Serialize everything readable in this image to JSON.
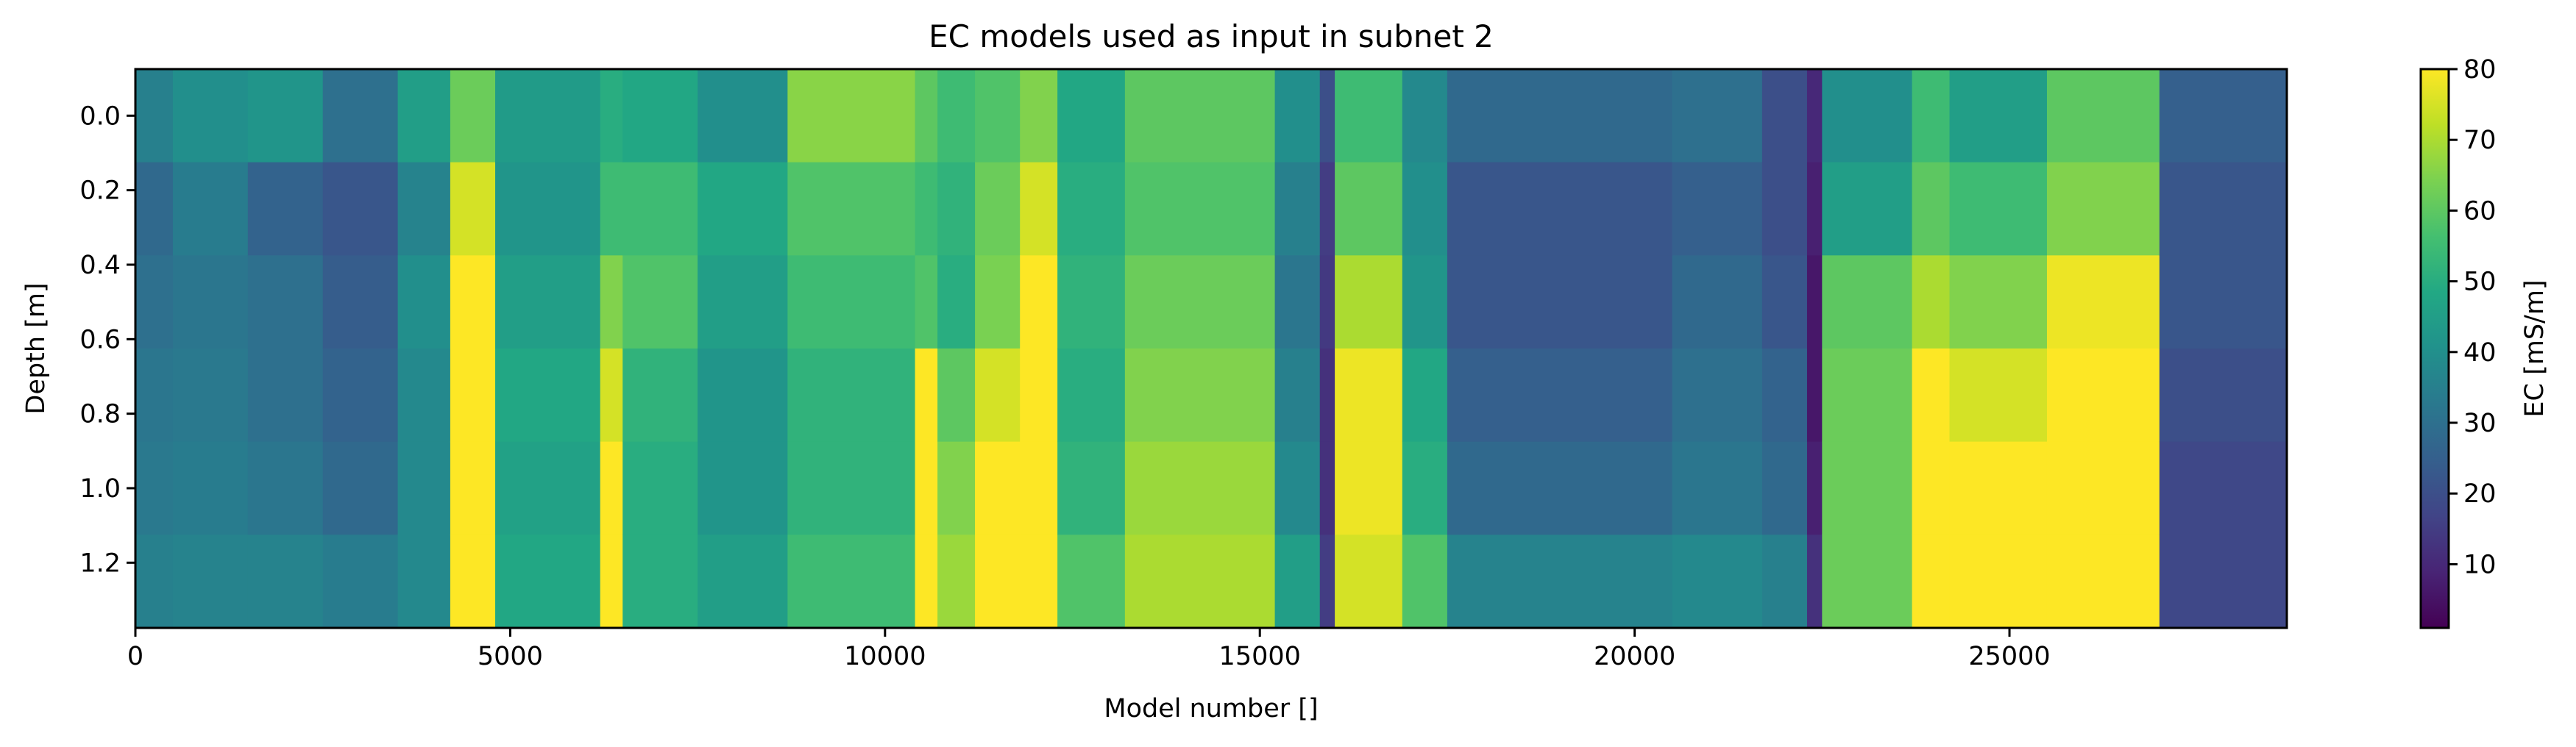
{
  "chart_data": {
    "type": "heatmap",
    "title": "EC models used as input in subnet 2",
    "xlabel": "Model number []",
    "ylabel": "Depth [m]",
    "colorbar_label": "EC [mS/m]",
    "colormap": "viridis",
    "xlim": [
      0,
      28700
    ],
    "ylim": [
      1.375,
      -0.125
    ],
    "clim": [
      1,
      80
    ],
    "x_ticks": [
      0,
      5000,
      10000,
      15000,
      20000,
      25000
    ],
    "x_tick_labels": [
      "0",
      "5000",
      "10000",
      "15000",
      "20000",
      "25000"
    ],
    "y_ticks": [
      0.0,
      0.2,
      0.4,
      0.6,
      0.8,
      1.0,
      1.2
    ],
    "y_tick_labels": [
      "0.0",
      "0.2",
      "0.4",
      "0.6",
      "0.8",
      "1.0",
      "1.2"
    ],
    "colorbar_ticks": [
      10,
      20,
      30,
      40,
      50,
      60,
      70,
      80
    ],
    "colorbar_tick_labels": [
      "10",
      "20",
      "30",
      "40",
      "50",
      "60",
      "70",
      "80"
    ],
    "layers": [
      {
        "depth_top": -0.125,
        "depth_bottom": 0.125
      },
      {
        "depth_top": 0.125,
        "depth_bottom": 0.375
      },
      {
        "depth_top": 0.375,
        "depth_bottom": 0.625
      },
      {
        "depth_top": 0.625,
        "depth_bottom": 0.875
      },
      {
        "depth_top": 0.875,
        "depth_bottom": 1.125
      },
      {
        "depth_top": 1.125,
        "depth_bottom": 1.375
      }
    ],
    "segments": [
      {
        "x0": 0,
        "x1": 500,
        "ec": [
          35,
          28,
          30,
          32,
          33,
          35
        ]
      },
      {
        "x0": 500,
        "x1": 1500,
        "ec": [
          40,
          34,
          32,
          33,
          34,
          36
        ]
      },
      {
        "x0": 1500,
        "x1": 2500,
        "ec": [
          42,
          26,
          30,
          30,
          32,
          36
        ]
      },
      {
        "x0": 2500,
        "x1": 3500,
        "ec": [
          30,
          22,
          24,
          26,
          28,
          34
        ]
      },
      {
        "x0": 3500,
        "x1": 4200,
        "ec": [
          45,
          36,
          40,
          38,
          38,
          38
        ]
      },
      {
        "x0": 4200,
        "x1": 4800,
        "ec": [
          62,
          75,
          80,
          80,
          80,
          80
        ]
      },
      {
        "x0": 4800,
        "x1": 6200,
        "ec": [
          44,
          42,
          45,
          48,
          46,
          48
        ]
      },
      {
        "x0": 6200,
        "x1": 6500,
        "ec": [
          50,
          55,
          65,
          75,
          80,
          80
        ]
      },
      {
        "x0": 6500,
        "x1": 7500,
        "ec": [
          48,
          55,
          58,
          52,
          50,
          50
        ]
      },
      {
        "x0": 7500,
        "x1": 8700,
        "ec": [
          40,
          48,
          45,
          42,
          42,
          45
        ]
      },
      {
        "x0": 8700,
        "x1": 10400,
        "ec": [
          66,
          58,
          55,
          52,
          52,
          55
        ]
      },
      {
        "x0": 10400,
        "x1": 10700,
        "ec": [
          60,
          55,
          58,
          80,
          80,
          80
        ]
      },
      {
        "x0": 10700,
        "x1": 11200,
        "ec": [
          55,
          52,
          50,
          60,
          65,
          68
        ]
      },
      {
        "x0": 11200,
        "x1": 11800,
        "ec": [
          58,
          62,
          64,
          75,
          80,
          80
        ]
      },
      {
        "x0": 11800,
        "x1": 12300,
        "ec": [
          65,
          75,
          80,
          80,
          80,
          80
        ]
      },
      {
        "x0": 12300,
        "x1": 13200,
        "ec": [
          48,
          50,
          52,
          50,
          52,
          58
        ]
      },
      {
        "x0": 13200,
        "x1": 15200,
        "ec": [
          60,
          58,
          62,
          65,
          68,
          70
        ]
      },
      {
        "x0": 15200,
        "x1": 15800,
        "ec": [
          40,
          35,
          32,
          35,
          38,
          45
        ]
      },
      {
        "x0": 15800,
        "x1": 16000,
        "ec": [
          20,
          15,
          14,
          12,
          12,
          15
        ]
      },
      {
        "x0": 16000,
        "x1": 16900,
        "ec": [
          55,
          60,
          70,
          78,
          78,
          75
        ]
      },
      {
        "x0": 16900,
        "x1": 17500,
        "ec": [
          38,
          40,
          42,
          48,
          50,
          58
        ]
      },
      {
        "x0": 17500,
        "x1": 20500,
        "ec": [
          28,
          22,
          22,
          25,
          28,
          36
        ]
      },
      {
        "x0": 20500,
        "x1": 21700,
        "ec": [
          30,
          25,
          28,
          30,
          32,
          38
        ]
      },
      {
        "x0": 21700,
        "x1": 22300,
        "ec": [
          20,
          20,
          22,
          26,
          28,
          35
        ]
      },
      {
        "x0": 22300,
        "x1": 22500,
        "ec": [
          10,
          8,
          6,
          6,
          8,
          12
        ]
      },
      {
        "x0": 22500,
        "x1": 23700,
        "ec": [
          40,
          45,
          60,
          62,
          62,
          62
        ]
      },
      {
        "x0": 23700,
        "x1": 24200,
        "ec": [
          55,
          60,
          70,
          80,
          80,
          80
        ]
      },
      {
        "x0": 24200,
        "x1": 25500,
        "ec": [
          45,
          55,
          65,
          75,
          80,
          80
        ]
      },
      {
        "x0": 25500,
        "x1": 27000,
        "ec": [
          60,
          65,
          78,
          80,
          80,
          80
        ]
      },
      {
        "x0": 27000,
        "x1": 28700,
        "ec": [
          25,
          22,
          22,
          20,
          18,
          18
        ]
      }
    ]
  }
}
